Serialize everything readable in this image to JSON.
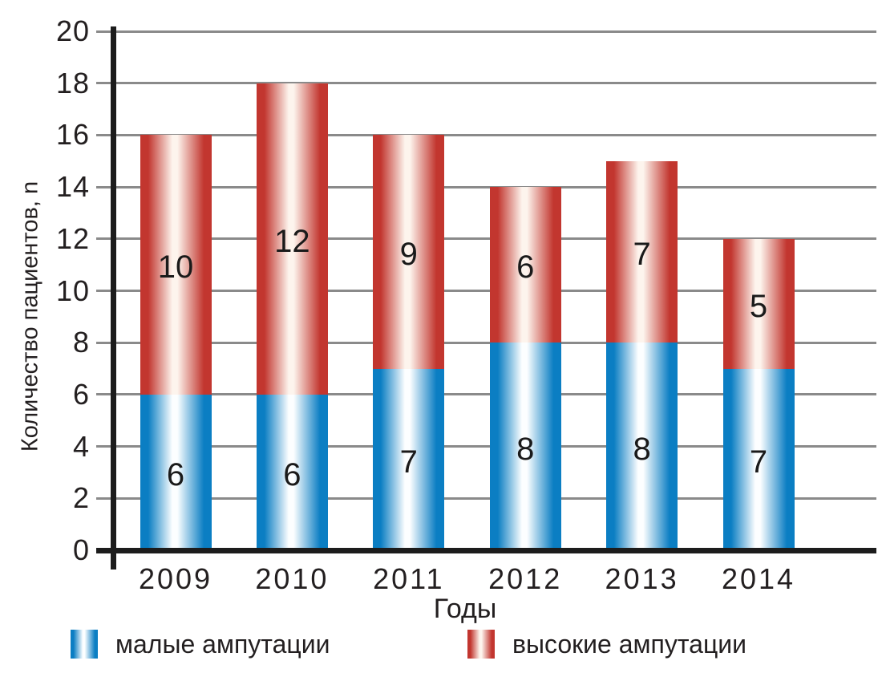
{
  "chart_data": {
    "type": "bar",
    "stacked": true,
    "categories": [
      "2009",
      "2010",
      "2011",
      "2012",
      "2013",
      "2014"
    ],
    "series": [
      {
        "name": "малые ампутации",
        "values": [
          6,
          6,
          7,
          8,
          8,
          7
        ],
        "edge_color": "#0b7ec3",
        "center_color": "#fcfeff"
      },
      {
        "name": "высокие ампутации",
        "values": [
          10,
          12,
          9,
          6,
          7,
          5
        ],
        "edge_color": "#c2362f",
        "center_color": "#fdf4ed"
      }
    ],
    "totals": [
      16,
      18,
      16,
      14,
      15,
      12
    ],
    "xlabel": "Годы",
    "ylabel": "Количество пациентов, n",
    "ylim": [
      0,
      20
    ],
    "yticks": [
      0,
      2,
      4,
      6,
      8,
      10,
      12,
      14,
      16,
      18,
      20
    ],
    "grid": true,
    "gridlines_behind_bars": true,
    "legend_position": "bottom",
    "bar_labels_inside": true
  },
  "colors": {
    "grid": "#8a8a8a",
    "axis": "#1c1c1c",
    "text": "#231f20"
  }
}
